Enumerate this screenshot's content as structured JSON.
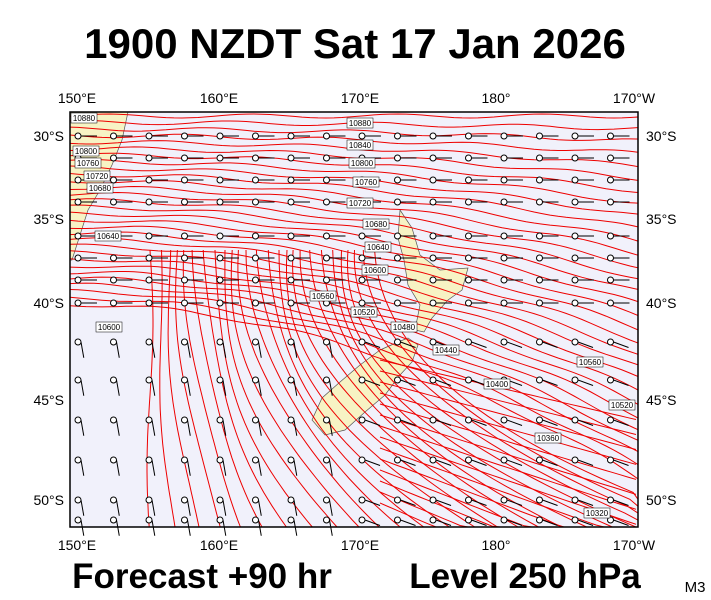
{
  "header": {
    "title": "1900 NZDT Sat 17 Jan 2026"
  },
  "map": {
    "lon_labels": [
      "150°E",
      "160°E",
      "170°E",
      "180°",
      "170°W"
    ],
    "lat_labels": [
      "30°S",
      "35°S",
      "40°S",
      "45°S",
      "50°S"
    ],
    "contour_labels": [
      "10880",
      "10840",
      "10800",
      "10760",
      "10720",
      "10680",
      "10640",
      "10600",
      "10560",
      "10520",
      "10480",
      "10440",
      "10400",
      "10360",
      "10320",
      "10560",
      "10520",
      "10600",
      "10640",
      "10880",
      "10800",
      "10760",
      "10720",
      "10680"
    ]
  },
  "footer": {
    "forecast": "Forecast +90 hr",
    "level": "Level 250 hPa",
    "code": "M3"
  }
}
